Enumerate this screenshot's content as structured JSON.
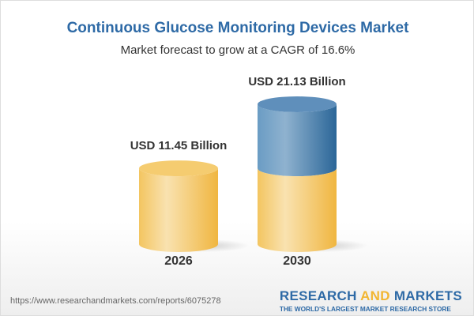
{
  "header": {
    "title": "Continuous Glucose Monitoring Devices Market",
    "subtitle": "Market forecast to grow at a CAGR of 16.6%"
  },
  "chart_data": {
    "type": "bar",
    "style": "3d-cylinder",
    "categories": [
      "2026",
      "2030"
    ],
    "values": [
      11.45,
      21.13
    ],
    "data_labels": [
      "USD 11.45 Billion",
      "USD 21.13 Billion"
    ],
    "colors": {
      "base": "#f2c057",
      "growth": "#3f79ad"
    }
  },
  "footer": {
    "url": "https://www.researchandmarkets.com/reports/6075278",
    "logo_part1": "RESEARCH ",
    "logo_part2": "AND",
    "logo_part3": " MARKETS",
    "tagline": "THE WORLD'S LARGEST MARKET RESEARCH STORE"
  }
}
